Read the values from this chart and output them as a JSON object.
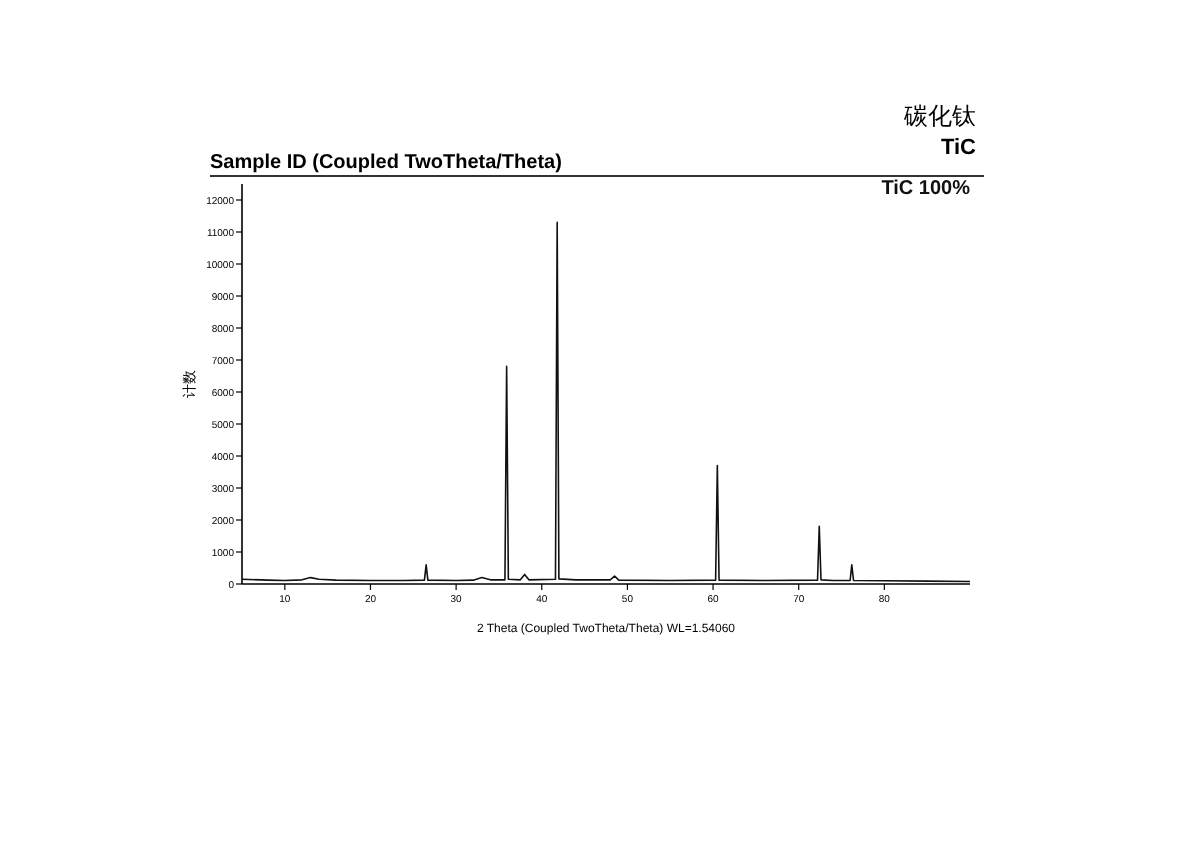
{
  "chart_data": {
    "type": "line",
    "title": "Sample ID (Coupled TwoTheta/Theta)",
    "annotations": [
      "碳化钛",
      "TiC"
    ],
    "xlabel": "2 Theta (Coupled TwoTheta/Theta) WL=1.54060",
    "ylabel": "计数",
    "xlim": [
      5,
      90
    ],
    "xticks": [
      10,
      20,
      30,
      40,
      50,
      60,
      70,
      80
    ],
    "ylim": [
      0,
      12500
    ],
    "yticks": [
      0,
      1000,
      2000,
      3000,
      4000,
      5000,
      6000,
      7000,
      8000,
      9000,
      10000,
      11000,
      12000
    ],
    "grid": false,
    "legend": "top right",
    "marker": "none",
    "line_style": "solid",
    "series": [
      {
        "name": "TiC 100%",
        "color": "#111111",
        "x": [
          5,
          8,
          10,
          12,
          13,
          14,
          16,
          20,
          24,
          26.3,
          26.5,
          26.7,
          30,
          32,
          33,
          34,
          35.7,
          35.9,
          36.1,
          37.5,
          38,
          38.5,
          41.6,
          41.8,
          42,
          44,
          48,
          48.5,
          49,
          55,
          60.3,
          60.5,
          60.7,
          66,
          72.2,
          72.4,
          72.6,
          74,
          76,
          76.2,
          76.4,
          80,
          85,
          90
        ],
        "values": [
          150,
          120,
          110,
          130,
          200,
          150,
          120,
          110,
          110,
          120,
          600,
          120,
          110,
          120,
          200,
          130,
          130,
          6800,
          150,
          130,
          300,
          130,
          150,
          11300,
          160,
          130,
          130,
          250,
          120,
          110,
          120,
          3700,
          120,
          110,
          120,
          1800,
          130,
          110,
          110,
          600,
          110,
          100,
          90,
          80
        ]
      }
    ]
  }
}
